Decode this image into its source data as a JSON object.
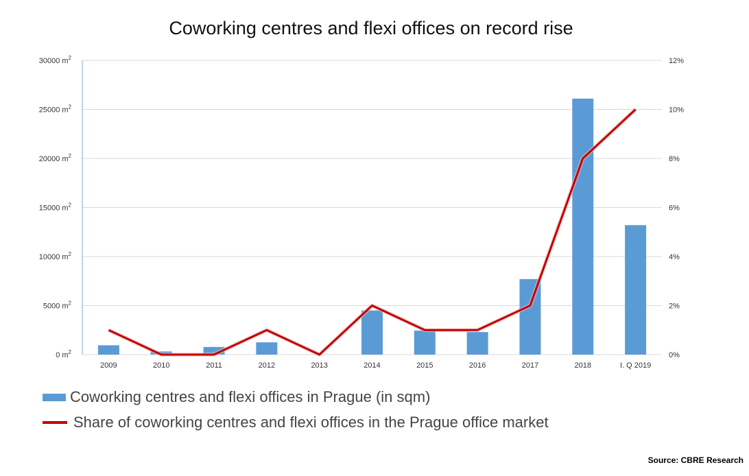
{
  "chart_data": {
    "type": "bar",
    "title": "Coworking centres and flexi offices on record rise",
    "categories": [
      "2009",
      "2010",
      "2011",
      "2012",
      "2013",
      "2014",
      "2015",
      "2016",
      "2017",
      "2018",
      "I. Q 2019"
    ],
    "series": [
      {
        "name": "Coworking centres and flexi offices in Prague (in sqm)",
        "type": "bar",
        "axis": "left",
        "color": "#5b9bd5",
        "values": [
          950,
          320,
          780,
          1250,
          0,
          4500,
          2450,
          2300,
          7700,
          26100,
          13200
        ]
      },
      {
        "name": "Share of coworking centres and flexi offices in the Prague office market",
        "type": "line",
        "axis": "right",
        "color": "#c00000",
        "values": [
          1,
          0,
          0,
          1,
          0,
          2,
          1,
          1,
          2,
          8,
          10
        ]
      }
    ],
    "y_left": {
      "ylim": [
        0,
        30000
      ],
      "ticks": [
        0,
        5000,
        10000,
        15000,
        20000,
        25000,
        30000
      ],
      "unit": "m",
      "unit_sup": "2"
    },
    "y_right": {
      "ylim": [
        0,
        12
      ],
      "ticks": [
        0,
        2,
        4,
        6,
        8,
        10,
        12
      ],
      "tick_suffix": "%"
    },
    "grid": true,
    "legend_position": "bottom-left"
  },
  "source": "Source: CBRE Research"
}
